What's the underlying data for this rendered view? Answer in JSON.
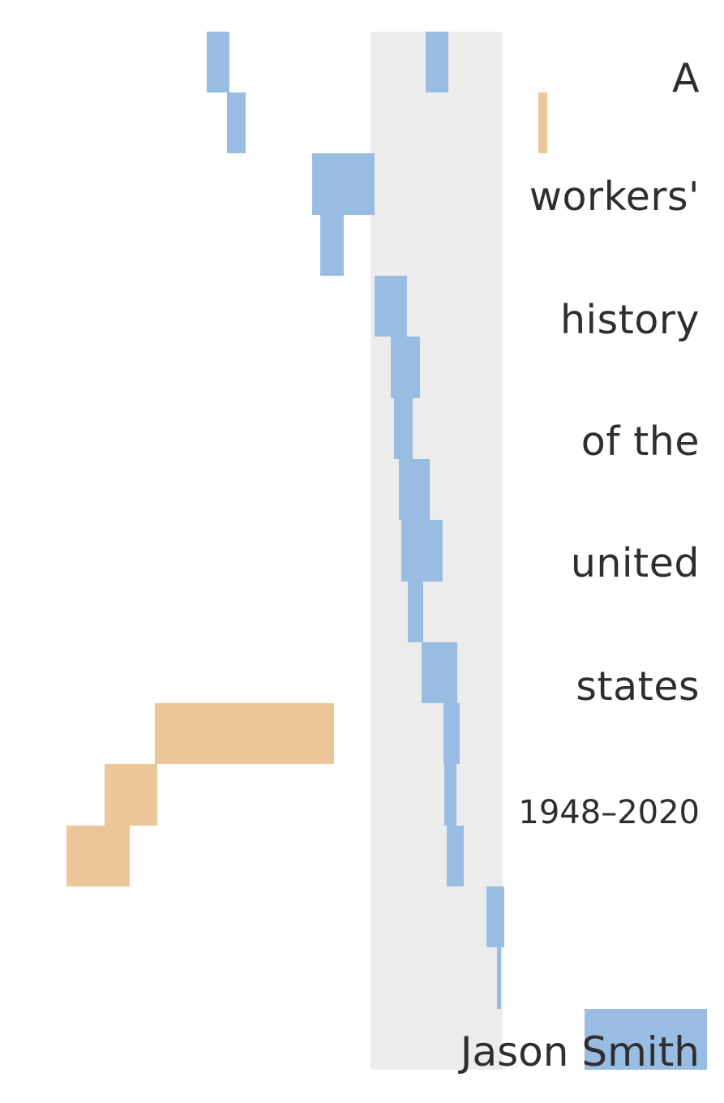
{
  "cover": {
    "title_lines": [
      "A",
      "workers'",
      "history",
      "of the",
      "united",
      "states"
    ],
    "years": "1948–2020",
    "author": "Jason Smith"
  },
  "colors": {
    "background": "#ffffff",
    "band": "#ececec",
    "blue": "#99bde2",
    "orange": "#ecc598",
    "text": "#2e2e2e"
  }
}
